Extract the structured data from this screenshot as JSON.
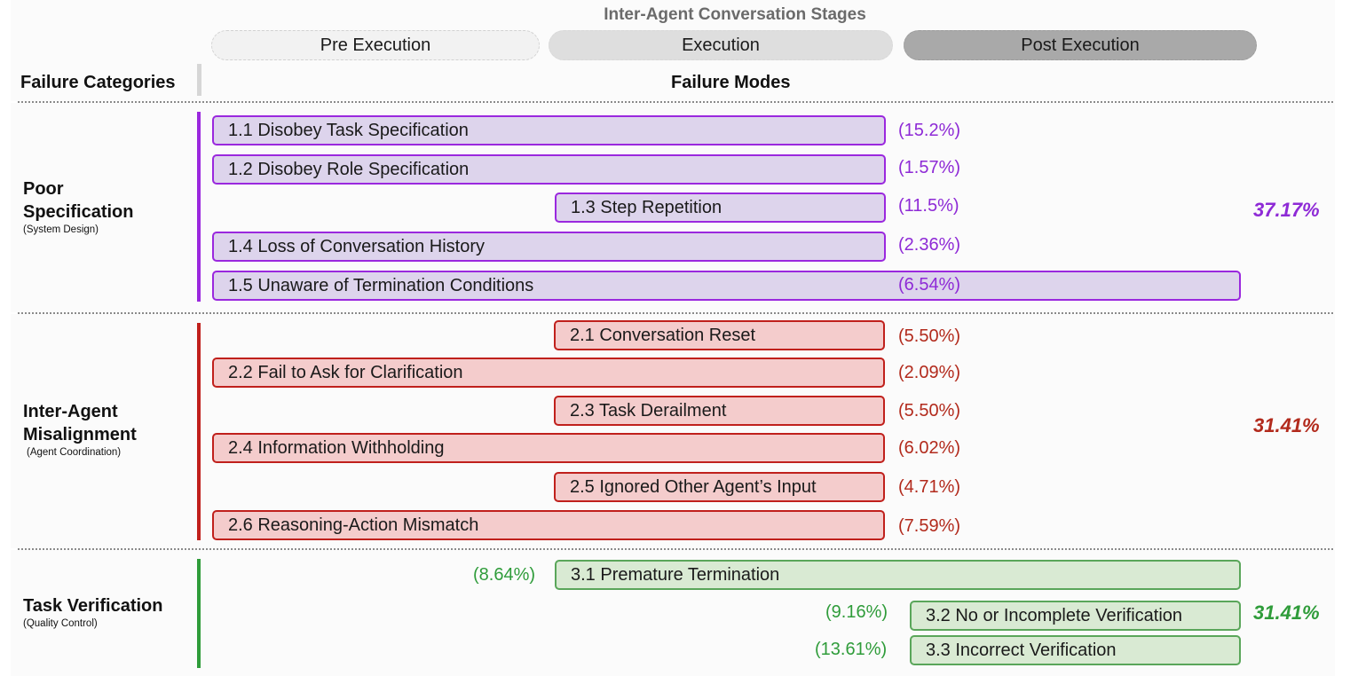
{
  "header": {
    "stages_title": "Inter-Agent Conversation Stages",
    "stages": [
      "Pre Execution",
      "Execution",
      "Post Execution"
    ],
    "categories_label": "Failure Categories",
    "modes_label": "Failure Modes"
  },
  "colors": {
    "poor_spec": "#9a28de",
    "misalignment": "#c0201c",
    "verification": "#2f9c3a"
  },
  "categories": [
    {
      "name_lines": [
        "Poor",
        "Specification"
      ],
      "subtitle": "(System Design)",
      "total": "37.17%",
      "modes": [
        {
          "label": "1.1 Disobey Task Specification",
          "pct": "(15.2%)"
        },
        {
          "label": "1.2 Disobey Role Specification",
          "pct": "(1.57%)"
        },
        {
          "label": "1.3 Step Repetition",
          "pct": "(11.5%)"
        },
        {
          "label": "1.4 Loss of Conversation History",
          "pct": "(2.36%)"
        },
        {
          "label": "1.5 Unaware of Termination Conditions",
          "pct": "(6.54%)"
        }
      ]
    },
    {
      "name_lines": [
        "Inter-Agent",
        "Misalignment"
      ],
      "subtitle": "(Agent Coordination)",
      "total": "31.41%",
      "modes": [
        {
          "label": "2.1 Conversation Reset",
          "pct": "(5.50%)"
        },
        {
          "label": "2.2 Fail to Ask for Clarification",
          "pct": "(2.09%)"
        },
        {
          "label": "2.3 Task Derailment",
          "pct": "(5.50%)"
        },
        {
          "label": "2.4 Information Withholding",
          "pct": "(6.02%)"
        },
        {
          "label": "2.5 Ignored Other Agent’s Input",
          "pct": "(4.71%)"
        },
        {
          "label": "2.6 Reasoning-Action Mismatch",
          "pct": "(7.59%)"
        }
      ]
    },
    {
      "name_lines": [
        "Task Verification"
      ],
      "subtitle": "(Quality Control)",
      "total": "31.41%",
      "modes": [
        {
          "label": "3.1  Premature Termination",
          "pct": "(8.64%)"
        },
        {
          "label": "3.2 No or Incomplete Verification",
          "pct": "(9.16%)"
        },
        {
          "label": "3.3 Incorrect Verification",
          "pct": "(13.61%)"
        }
      ]
    }
  ]
}
